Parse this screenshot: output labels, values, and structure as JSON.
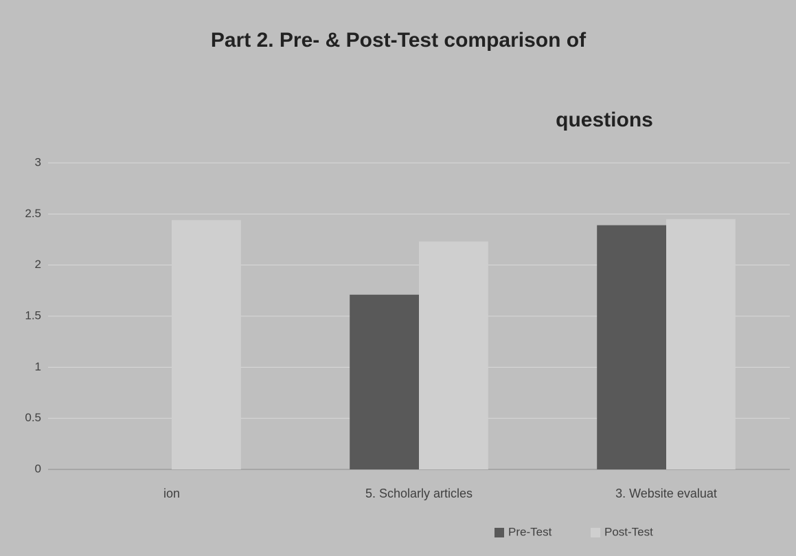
{
  "chart_data": {
    "type": "bar",
    "title": [
      "Part 2. Pre- & Post-Test comparison of",
      "questions"
    ],
    "categories": [
      "ion",
      "5. Scholarly articles",
      "3. Website evaluat"
    ],
    "series": [
      {
        "name": "Pre-Test",
        "color": "#595959",
        "values": [
          null,
          1.71,
          2.39
        ]
      },
      {
        "name": "Post-Test",
        "color": "#cfcfcf",
        "values": [
          2.44,
          2.23,
          2.45
        ]
      }
    ],
    "ylim": [
      0,
      3
    ],
    "yticks": [
      0,
      0.5,
      1,
      1.5,
      2,
      2.5,
      3
    ],
    "grid": true,
    "legend": "bottom"
  }
}
